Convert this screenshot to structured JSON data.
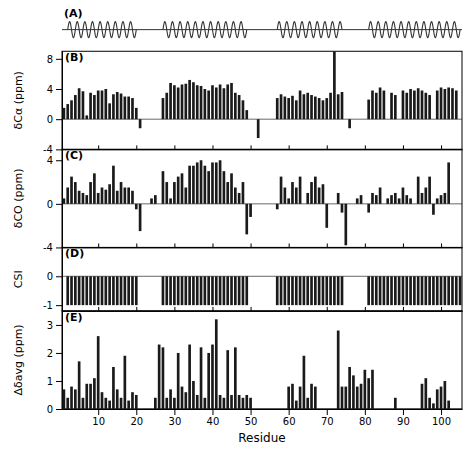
{
  "chart_data": [
    {
      "type": "diagram",
      "title": "(A)",
      "xlim": [
        0.5,
        105.5
      ],
      "regions": [
        [
          2,
          20
        ],
        [
          27,
          49
        ],
        [
          57,
          74
        ],
        [
          81,
          105
        ]
      ]
    },
    {
      "type": "bar",
      "title": "(B)",
      "ylabel": "δCα (ppm)",
      "color": "#1a1a1a",
      "xlim": [
        0.5,
        105.5
      ],
      "xticks": [
        10,
        20,
        30,
        40,
        50,
        60,
        70,
        80,
        90,
        100
      ],
      "ylim": [
        -4,
        9
      ],
      "yticks": [
        -4,
        0,
        4,
        8
      ],
      "tick_labels": "y",
      "x": [
        1,
        2,
        3,
        4,
        5,
        6,
        7,
        8,
        9,
        10,
        11,
        12,
        13,
        14,
        15,
        16,
        17,
        18,
        19,
        20,
        21,
        22,
        23,
        24,
        25,
        26,
        27,
        28,
        29,
        30,
        31,
        32,
        33,
        34,
        35,
        36,
        37,
        38,
        39,
        40,
        41,
        42,
        43,
        44,
        45,
        46,
        47,
        48,
        49,
        50,
        51,
        52,
        53,
        54,
        55,
        56,
        57,
        58,
        59,
        60,
        61,
        62,
        63,
        64,
        65,
        66,
        67,
        68,
        69,
        70,
        71,
        72,
        73,
        74,
        75,
        76,
        77,
        78,
        79,
        80,
        81,
        82,
        83,
        84,
        85,
        86,
        87,
        88,
        89,
        90,
        91,
        92,
        93,
        94,
        95,
        96,
        97,
        98,
        99,
        100,
        101,
        102,
        103,
        104,
        105
      ],
      "values": [
        1.5,
        2.0,
        2.5,
        3.2,
        4.1,
        3.7,
        0.5,
        3.5,
        3.2,
        3.8,
        3.8,
        4.0,
        2.1,
        3.3,
        3.6,
        3.4,
        3.0,
        3.0,
        2.8,
        1.5,
        -1.2,
        0.0,
        0.0,
        0.0,
        0.0,
        0.0,
        2.8,
        3.5,
        4.8,
        4.5,
        4.2,
        4.6,
        4.7,
        5.2,
        4.9,
        4.5,
        4.4,
        4.0,
        3.8,
        4.5,
        4.2,
        4.6,
        4.1,
        4.6,
        4.8,
        3.5,
        3.2,
        2.5,
        1.2,
        0.0,
        0.0,
        -2.5,
        0.0,
        0.0,
        0.0,
        0.0,
        2.8,
        3.3,
        3.0,
        2.8,
        3.1,
        2.5,
        3.8,
        3.3,
        3.5,
        3.2,
        3.0,
        2.8,
        2.5,
        2.8,
        3.5,
        9.0,
        3.3,
        3.6,
        0.0,
        -1.2,
        0.0,
        0.0,
        0.0,
        0.0,
        2.6,
        3.8,
        3.5,
        4.2,
        3.8,
        0.0,
        3.5,
        3.2,
        0.0,
        3.8,
        3.5,
        4.0,
        3.8,
        4.1,
        3.8,
        3.5,
        3.2,
        0.0,
        3.8,
        4.2,
        4.0,
        4.2,
        4.1,
        3.8,
        0.0
      ]
    },
    {
      "type": "bar",
      "title": "(C)",
      "ylabel": "δCO (ppm)",
      "color": "#1a1a1a",
      "xlim": [
        0.5,
        105.5
      ],
      "xticks": [
        10,
        20,
        30,
        40,
        50,
        60,
        70,
        80,
        90,
        100
      ],
      "ylim": [
        -4,
        5
      ],
      "yticks": [
        -4,
        0,
        4
      ],
      "tick_labels": "y",
      "x": [
        1,
        2,
        3,
        4,
        5,
        6,
        7,
        8,
        9,
        10,
        11,
        12,
        13,
        14,
        15,
        16,
        17,
        18,
        19,
        20,
        21,
        22,
        23,
        24,
        25,
        26,
        27,
        28,
        29,
        30,
        31,
        32,
        33,
        34,
        35,
        36,
        37,
        38,
        39,
        40,
        41,
        42,
        43,
        44,
        45,
        46,
        47,
        48,
        49,
        50,
        51,
        52,
        53,
        54,
        55,
        56,
        57,
        58,
        59,
        60,
        61,
        62,
        63,
        64,
        65,
        66,
        67,
        68,
        69,
        70,
        71,
        72,
        73,
        74,
        75,
        76,
        77,
        78,
        79,
        80,
        81,
        82,
        83,
        84,
        85,
        86,
        87,
        88,
        89,
        90,
        91,
        92,
        93,
        94,
        95,
        96,
        97,
        98,
        99,
        100,
        101,
        102,
        103,
        104,
        105
      ],
      "values": [
        0.5,
        1.5,
        2.5,
        2.0,
        1.2,
        1.0,
        0.8,
        2.0,
        2.8,
        1.0,
        1.5,
        1.3,
        1.8,
        3.5,
        1.2,
        2.0,
        1.5,
        1.5,
        1.2,
        -0.5,
        -2.5,
        0.0,
        0.0,
        0.5,
        0.8,
        0.0,
        3.0,
        2.0,
        0.5,
        2.0,
        2.5,
        2.8,
        1.5,
        3.5,
        3.5,
        3.8,
        4.0,
        3.5,
        3.0,
        3.8,
        3.8,
        4.0,
        3.0,
        2.0,
        2.8,
        1.5,
        1.0,
        2.0,
        -2.8,
        -1.2,
        0.0,
        0.0,
        0.0,
        0.0,
        0.0,
        0.0,
        -0.5,
        2.5,
        1.5,
        0.5,
        2.0,
        1.5,
        2.5,
        0.0,
        1.0,
        2.0,
        2.5,
        1.5,
        1.8,
        -2.2,
        0.0,
        0.0,
        1.0,
        -0.8,
        -3.8,
        0.0,
        0.0,
        0.5,
        0.8,
        0.0,
        -0.8,
        1.0,
        0.8,
        1.5,
        0.0,
        0.5,
        0.8,
        1.0,
        0.5,
        1.5,
        0.8,
        0.5,
        0.0,
        2.5,
        1.0,
        1.5,
        2.5,
        -1.0,
        0.5,
        0.8,
        1.0,
        3.8,
        0.0,
        0.0,
        0.0
      ]
    },
    {
      "type": "bar",
      "title": "(D)",
      "ylabel": "CSI",
      "color": "#1a1a1a",
      "xlim": [
        0.5,
        105.5
      ],
      "xticks": [
        10,
        20,
        30,
        40,
        50,
        60,
        70,
        80,
        90,
        100
      ],
      "ylim": [
        -1.2,
        1.0
      ],
      "yticks": [
        -1,
        0
      ],
      "tick_labels": "y",
      "x": [
        1,
        2,
        3,
        4,
        5,
        6,
        7,
        8,
        9,
        10,
        11,
        12,
        13,
        14,
        15,
        16,
        17,
        18,
        19,
        20,
        21,
        22,
        23,
        24,
        25,
        26,
        27,
        28,
        29,
        30,
        31,
        32,
        33,
        34,
        35,
        36,
        37,
        38,
        39,
        40,
        41,
        42,
        43,
        44,
        45,
        46,
        47,
        48,
        49,
        50,
        51,
        52,
        53,
        54,
        55,
        56,
        57,
        58,
        59,
        60,
        61,
        62,
        63,
        64,
        65,
        66,
        67,
        68,
        69,
        70,
        71,
        72,
        73,
        74,
        75,
        76,
        77,
        78,
        79,
        80,
        81,
        82,
        83,
        84,
        85,
        86,
        87,
        88,
        89,
        90,
        91,
        92,
        93,
        94,
        95,
        96,
        97,
        98,
        99,
        100,
        101,
        102,
        103,
        104,
        105
      ],
      "values": [
        0,
        -1,
        -1,
        -1,
        -1,
        -1,
        -1,
        -1,
        -1,
        -1,
        -1,
        -1,
        -1,
        -1,
        -1,
        -1,
        -1,
        -1,
        -1,
        -1,
        0,
        0,
        0,
        0,
        0,
        0,
        -1,
        -1,
        -1,
        -1,
        -1,
        -1,
        -1,
        -1,
        -1,
        -1,
        -1,
        -1,
        -1,
        -1,
        -1,
        -1,
        -1,
        -1,
        -1,
        -1,
        -1,
        -1,
        -1,
        0,
        0,
        0,
        0,
        0,
        0,
        0,
        -1,
        -1,
        -1,
        -1,
        -1,
        -1,
        -1,
        -1,
        -1,
        -1,
        -1,
        -1,
        -1,
        -1,
        -1,
        -1,
        -1,
        -1,
        0,
        0,
        0,
        0,
        0,
        0,
        -1,
        -1,
        -1,
        -1,
        -1,
        -1,
        -1,
        -1,
        -1,
        -1,
        -1,
        -1,
        -1,
        -1,
        -1,
        -1,
        -1,
        -1,
        -1,
        -1,
        -1,
        -1,
        -1,
        -1,
        -1
      ]
    },
    {
      "type": "bar",
      "title": "(E)",
      "ylabel": "Δδavg (ppm)",
      "xlabel": "Residue",
      "color": "#1a1a1a",
      "xlim": [
        0.5,
        105.5
      ],
      "xticks": [
        10,
        20,
        30,
        40,
        50,
        60,
        70,
        80,
        90,
        100
      ],
      "ylim": [
        0,
        3.5
      ],
      "yticks": [
        0,
        1,
        2,
        3
      ],
      "x": [
        1,
        2,
        3,
        4,
        5,
        6,
        7,
        8,
        9,
        10,
        11,
        12,
        13,
        14,
        15,
        16,
        17,
        18,
        19,
        20,
        21,
        22,
        23,
        24,
        25,
        26,
        27,
        28,
        29,
        30,
        31,
        32,
        33,
        34,
        35,
        36,
        37,
        38,
        39,
        40,
        41,
        42,
        43,
        44,
        45,
        46,
        47,
        48,
        49,
        50,
        51,
        52,
        53,
        54,
        55,
        56,
        57,
        58,
        59,
        60,
        61,
        62,
        63,
        64,
        65,
        66,
        67,
        68,
        69,
        70,
        71,
        72,
        73,
        74,
        75,
        76,
        77,
        78,
        79,
        80,
        81,
        82,
        83,
        84,
        85,
        86,
        87,
        88,
        89,
        90,
        91,
        92,
        93,
        94,
        95,
        96,
        97,
        98,
        99,
        100,
        101,
        102,
        103,
        104,
        105
      ],
      "values": [
        0.7,
        0.4,
        0.8,
        0.7,
        1.7,
        0.4,
        0.9,
        0.9,
        1.1,
        2.6,
        0.6,
        0.4,
        0.3,
        1.5,
        0.7,
        0.4,
        1.9,
        0.3,
        0.6,
        0.5,
        0.0,
        0.0,
        0.0,
        0.0,
        0.4,
        2.3,
        2.2,
        0.4,
        0.7,
        0.4,
        2.0,
        0.8,
        0.6,
        2.3,
        1.0,
        0.5,
        2.2,
        0.4,
        2.0,
        2.3,
        3.2,
        0.5,
        0.4,
        2.1,
        0.5,
        2.2,
        0.5,
        0.4,
        0.5,
        0.4,
        0.0,
        0.0,
        0.0,
        0.0,
        0.0,
        0.0,
        0.0,
        0.0,
        0.0,
        0.8,
        0.9,
        0.3,
        0.8,
        1.9,
        0.4,
        0.9,
        0.8,
        0.0,
        0.0,
        0.0,
        0.0,
        0.0,
        2.8,
        0.8,
        0.8,
        1.5,
        1.2,
        0.8,
        0.9,
        1.4,
        1.1,
        1.4,
        0.0,
        0.0,
        0.0,
        0.0,
        0.0,
        0.4,
        0.0,
        0.0,
        0.0,
        0.0,
        0.0,
        0.0,
        0.9,
        1.1,
        0.4,
        0.2,
        0.7,
        0.8,
        1.0,
        0.3,
        0.0,
        0.0,
        0.0
      ]
    }
  ]
}
